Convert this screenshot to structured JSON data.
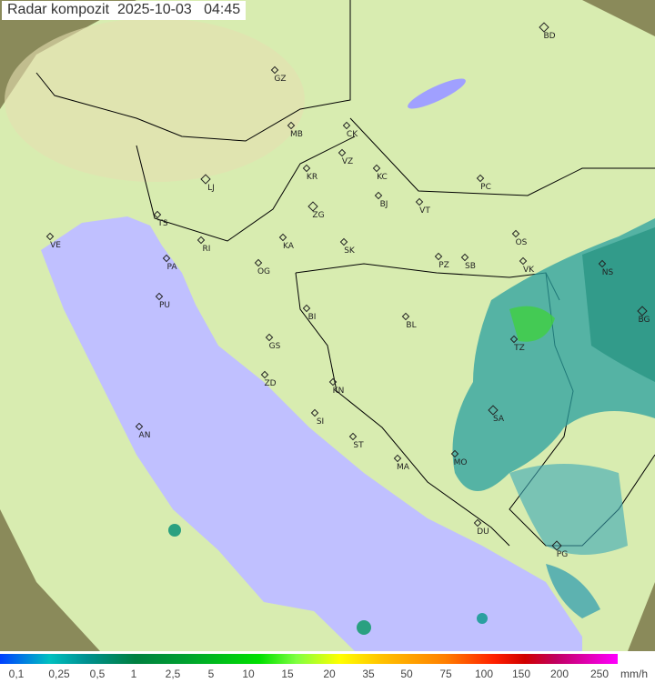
{
  "title": "Radar kompozit  2025-10-03   04:45",
  "colors": {
    "coverage": "#d8ecb0",
    "outside": "#8a8a5a",
    "sea": "#c0c0ff",
    "border": "#000000"
  },
  "cities": [
    "GZ",
    "BD",
    "MB",
    "CK",
    "VZ",
    "KR",
    "KC",
    "PC",
    "LJ",
    "ZG",
    "BJ",
    "VT",
    "TS",
    "VE",
    "RI",
    "KA",
    "SK",
    "OS",
    "PA",
    "OG",
    "PZ",
    "SB",
    "VK",
    "NS",
    "PU",
    "BI",
    "BL",
    "BG",
    "GS",
    "TZ",
    "ZD",
    "KN",
    "SA",
    "AN",
    "SI",
    "ST",
    "MO",
    "MA",
    "DU",
    "PG"
  ],
  "legend": {
    "values": [
      "0,1",
      "0,25",
      "0,5",
      "1",
      "2,5",
      "5",
      "10",
      "15",
      "20",
      "35",
      "50",
      "75",
      "100",
      "150",
      "200",
      "250"
    ],
    "unit": "mm/h"
  }
}
